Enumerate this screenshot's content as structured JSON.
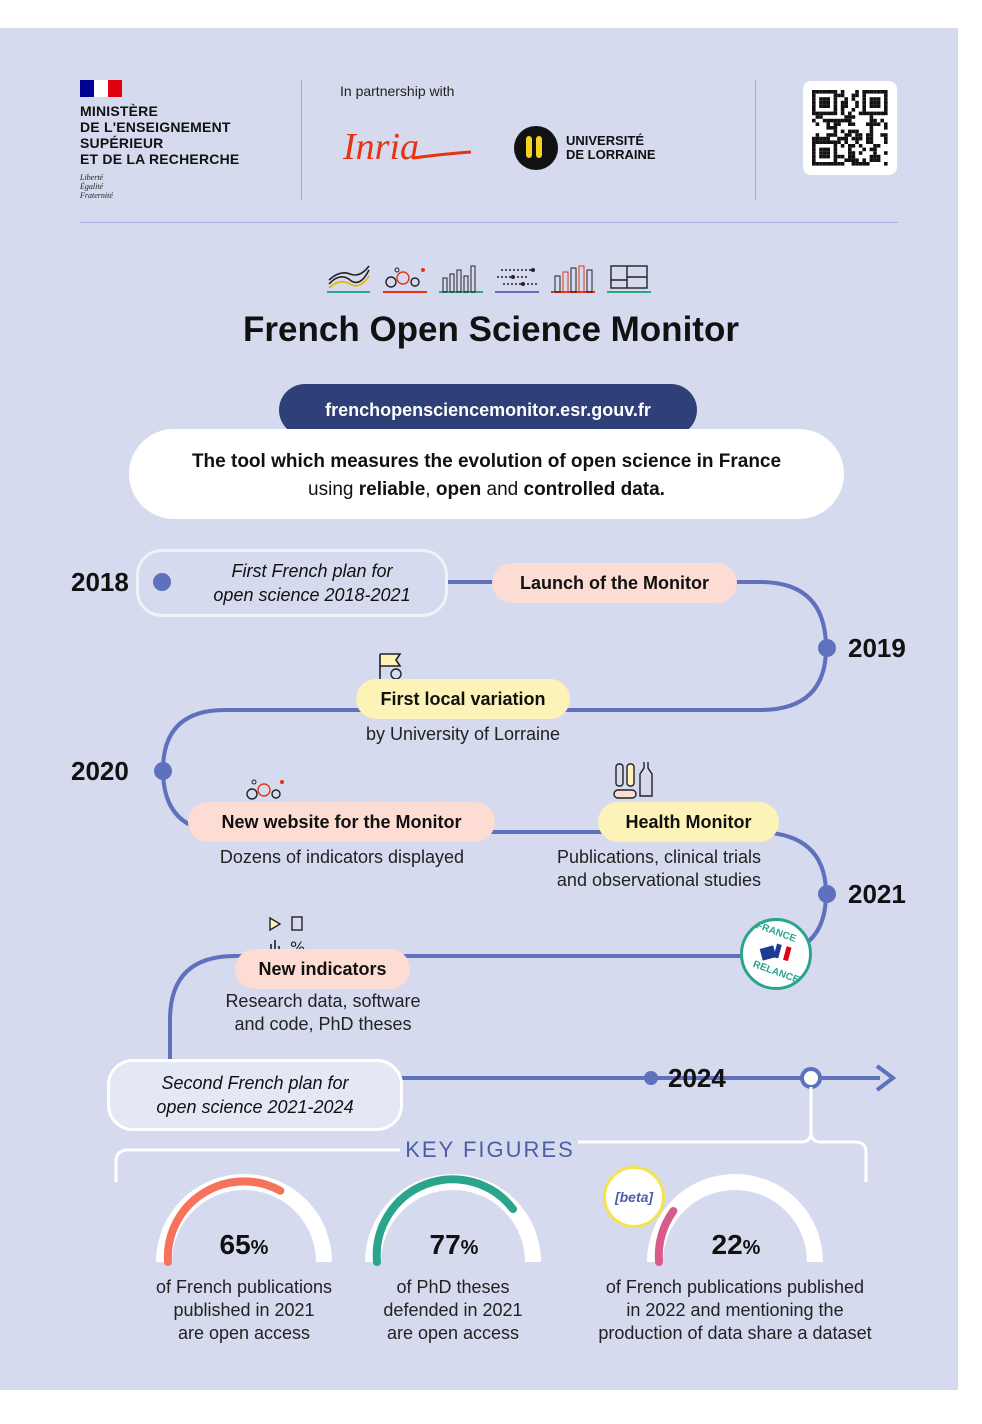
{
  "header": {
    "ministry_lines": [
      "MINISTÈRE",
      "DE L'ENSEIGNEMENT",
      "SUPÉRIEUR",
      "ET DE LA RECHERCHE"
    ],
    "motto_lines": [
      "Liberté",
      "Égalité",
      "Fraternité"
    ],
    "partnership_label": "In partnership with",
    "inria_logo_text": "Inria",
    "lorraine_logo_lines": [
      "UNIVERSITÉ",
      "DE LORRAINE"
    ]
  },
  "title": "French Open Science Monitor",
  "url": "frenchopensciencemonitor.esr.gouv.fr",
  "tagline": {
    "line1": "The tool which measures the evolution of open science in France",
    "line2_parts": [
      "using ",
      "reliable",
      ", ",
      "open",
      " and ",
      "controlled data."
    ]
  },
  "timeline": {
    "years": [
      "2018",
      "2019",
      "2020",
      "2021",
      "2024"
    ],
    "first_plan": [
      "First French plan for",
      "open science 2018-2021"
    ],
    "launch": "Launch of the Monitor",
    "local_variation": "First local variation",
    "local_variation_sub": "by University of Lorraine",
    "new_website": "New website for the Monitor",
    "new_website_sub": "Dozens of indicators displayed",
    "health_monitor": "Health Monitor",
    "health_monitor_sub": [
      "Publications, clinical trials",
      "and observational studies"
    ],
    "new_indicators": "New indicators",
    "new_indicators_sub": [
      "Research data, software",
      "and code, PhD theses"
    ],
    "france_relance": [
      "FRANCE",
      "RELANCE"
    ],
    "second_plan": [
      "Second French plan for",
      "open science 2021-2024"
    ]
  },
  "key_figures": {
    "heading": "KEY FIGURES",
    "beta_label": "[beta]",
    "percent_sign": "%",
    "items": [
      {
        "value": "65",
        "fraction": 0.65,
        "color": "#f4735a",
        "caption": [
          "of French publications",
          "published in 2021",
          "are open access"
        ]
      },
      {
        "value": "77",
        "fraction": 0.77,
        "color": "#2aa58c",
        "caption": [
          "of PhD theses",
          "defended in 2021",
          "are open access"
        ]
      },
      {
        "value": "22",
        "fraction": 0.22,
        "color": "#d65a8a",
        "caption": [
          "of French publications published",
          "in 2022 and mentioning the",
          "production of data share a dataset"
        ]
      }
    ]
  },
  "colors": {
    "background": "#d5daee",
    "timeline_line": "#5f70bd",
    "pill_pink": "#fcdcd3",
    "pill_yellow": "#fdf2b8",
    "url_pill": "#2f3f78"
  }
}
